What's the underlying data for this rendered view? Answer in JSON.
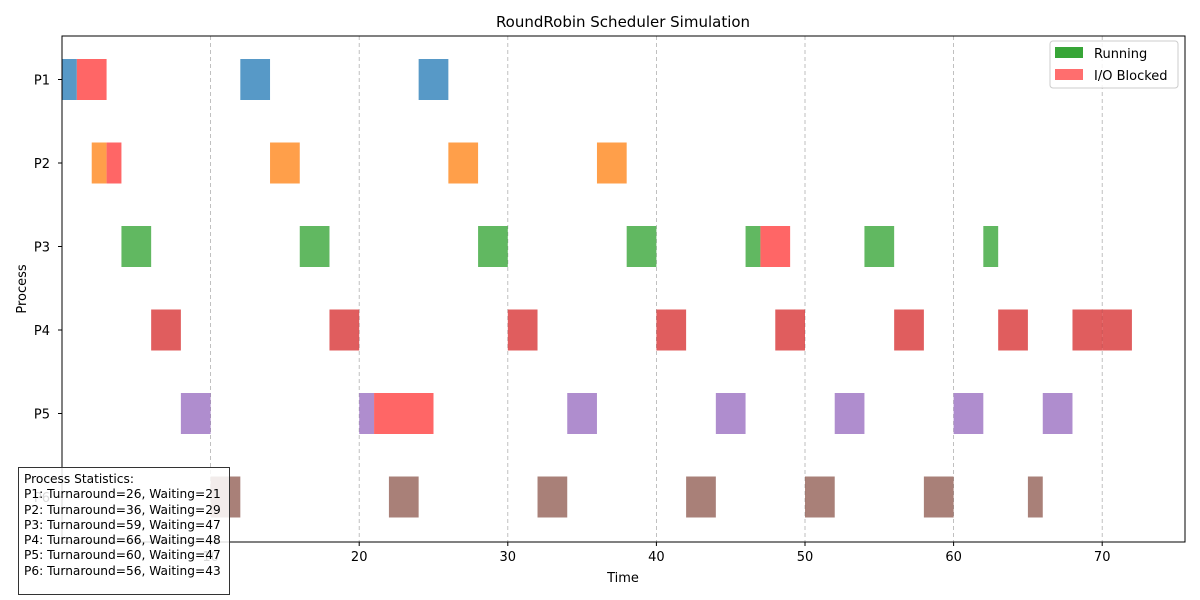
{
  "chart_data": {
    "type": "gantt",
    "title": "RoundRobin Scheduler Simulation",
    "xlabel": "Time",
    "ylabel": "Process",
    "xlim": [
      0,
      75.5
    ],
    "xticks": [
      10,
      20,
      30,
      40,
      50,
      60,
      70
    ],
    "grid": "vertical dashed",
    "legend_position": "top-right",
    "legend": [
      {
        "label": "Running",
        "color": "#2ca02c"
      },
      {
        "label": "I/O Blocked",
        "color": "#ff6666"
      }
    ],
    "processes": [
      {
        "name": "P1",
        "color": "#1f77b4",
        "running": [
          [
            0,
            1
          ],
          [
            12,
            14
          ],
          [
            24,
            26
          ]
        ],
        "blocked": [
          [
            1,
            3
          ]
        ]
      },
      {
        "name": "P2",
        "color": "#ff7f0e",
        "running": [
          [
            2,
            3
          ],
          [
            14,
            16
          ],
          [
            26,
            28
          ],
          [
            36,
            38
          ]
        ],
        "blocked": [
          [
            3,
            4
          ]
        ]
      },
      {
        "name": "P3",
        "color": "#2ca02c",
        "running": [
          [
            4,
            6
          ],
          [
            16,
            18
          ],
          [
            28,
            30
          ],
          [
            38,
            40
          ],
          [
            46,
            47
          ],
          [
            54,
            56
          ],
          [
            62,
            63
          ]
        ],
        "blocked": [
          [
            47,
            49
          ]
        ]
      },
      {
        "name": "P4",
        "color": "#d62728",
        "running": [
          [
            6,
            8
          ],
          [
            18,
            20
          ],
          [
            30,
            32
          ],
          [
            40,
            42
          ],
          [
            48,
            50
          ],
          [
            56,
            58
          ],
          [
            63,
            65
          ],
          [
            68,
            70
          ],
          [
            70,
            72
          ]
        ],
        "blocked": []
      },
      {
        "name": "P5",
        "color": "#9467bd",
        "running": [
          [
            8,
            10
          ],
          [
            20,
            21
          ],
          [
            34,
            36
          ],
          [
            44,
            46
          ],
          [
            52,
            54
          ],
          [
            60,
            62
          ],
          [
            66,
            68
          ]
        ],
        "blocked": [
          [
            21,
            25
          ]
        ]
      },
      {
        "name": "P6",
        "color": "#8c564b",
        "running": [
          [
            10,
            12
          ],
          [
            22,
            24
          ],
          [
            32,
            34
          ],
          [
            42,
            44
          ],
          [
            50,
            52
          ],
          [
            58,
            60
          ],
          [
            65,
            66
          ]
        ],
        "blocked": []
      }
    ]
  },
  "stats": {
    "heading": "Process Statistics:",
    "lines": [
      "P1: Turnaround=26, Waiting=21",
      "P2: Turnaround=36, Waiting=29",
      "P3: Turnaround=59, Waiting=47",
      "P4: Turnaround=66, Waiting=48",
      "P5: Turnaround=60, Waiting=47",
      "P6: Turnaround=56, Waiting=43"
    ]
  }
}
